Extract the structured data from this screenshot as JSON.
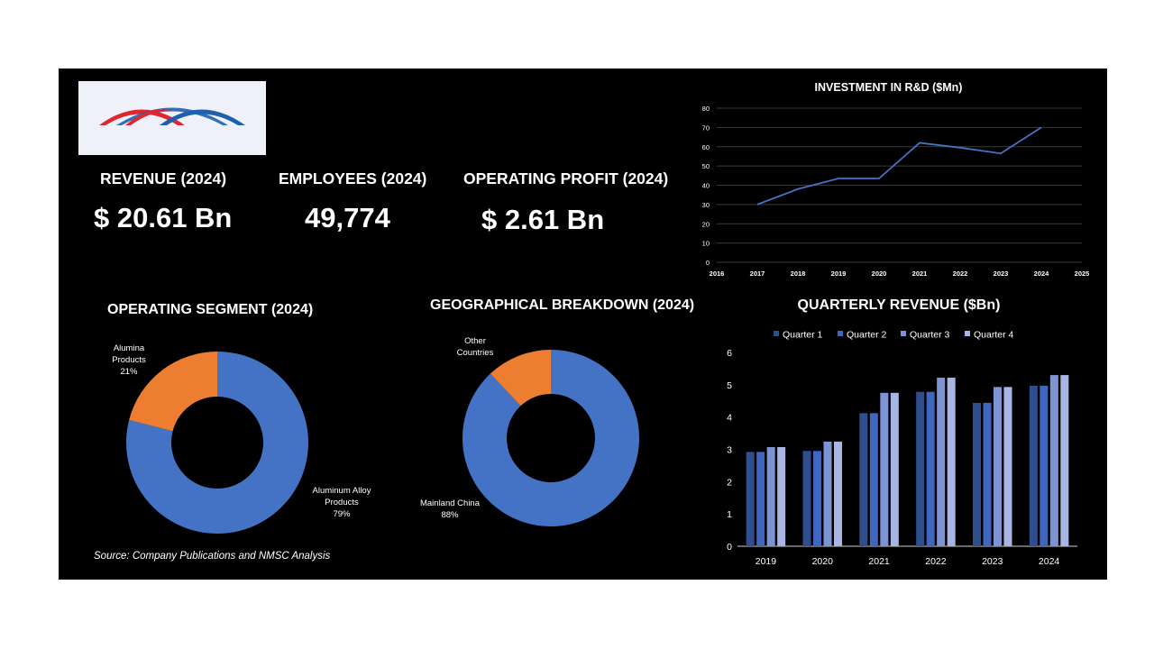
{
  "kpis": {
    "revenue_title": "REVENUE (2024)",
    "revenue_value": "$ 20.61 Bn",
    "employees_title": "EMPLOYEES (2024)",
    "employees_value": "49,774",
    "profit_title": "OPERATING PROFIT (2024)",
    "profit_value": "$ 2.61 Bn"
  },
  "source": "Source: Company Publications and NMSC Analysis",
  "colors": {
    "background": "#000000",
    "blue": "#4472c4",
    "orange": "#ed7d31",
    "logo_red": "#e0262e",
    "logo_blue": "#1f5fae",
    "q1": "#2f4e8e",
    "q2": "#3f67c0",
    "q3": "#7d94d4",
    "q4": "#a7b6e3"
  },
  "chart_data": [
    {
      "type": "line",
      "title": "INVESTMENT IN R&D ($Mn)",
      "x": [
        2017,
        2018,
        2019,
        2020,
        2021,
        2022,
        2023,
        2024
      ],
      "y": [
        30,
        38,
        43.5,
        43.5,
        62,
        59.5,
        56.5,
        70
      ],
      "xticks": [
        "2016",
        "2017",
        "2018",
        "2019",
        "2020",
        "2021",
        "2022",
        "2023",
        "2024",
        "2025"
      ],
      "yticks": [
        "0",
        "10",
        "20",
        "30",
        "40",
        "50",
        "60",
        "70",
        "80"
      ],
      "xlim": [
        2016,
        2025
      ],
      "ylim": [
        0,
        80
      ],
      "grid": true
    },
    {
      "type": "pie",
      "title": "OPERATING SEGMENT (2024)",
      "labels": [
        "Aluminum Alloy Products",
        "Alumina Products"
      ],
      "values": [
        79,
        21
      ],
      "display_labels": [
        [
          "Aluminum Alloy",
          "Products",
          "79%"
        ],
        [
          "Alumina",
          "Products",
          "21%"
        ]
      ]
    },
    {
      "type": "pie",
      "title": "GEOGRAPHICAL BREAKDOWN (2024)",
      "labels": [
        "Mainland China",
        "Other Countries"
      ],
      "values": [
        88,
        12
      ],
      "display_labels": [
        [
          "Mainland China",
          "88%"
        ],
        [
          "Other",
          "Countries"
        ]
      ]
    },
    {
      "type": "bar",
      "title": "QUARTERLY REVENUE ($Bn)",
      "categories": [
        "2019",
        "2020",
        "2021",
        "2022",
        "2023",
        "2024"
      ],
      "series": [
        {
          "name": "Quarter 1",
          "values": [
            2.92,
            2.95,
            4.12,
            4.78,
            4.44,
            4.97
          ]
        },
        {
          "name": "Quarter 2",
          "values": [
            2.92,
            2.95,
            4.12,
            4.78,
            4.44,
            4.97
          ]
        },
        {
          "name": "Quarter 3",
          "values": [
            3.07,
            3.24,
            4.75,
            5.22,
            4.93,
            5.3
          ]
        },
        {
          "name": "Quarter 4",
          "values": [
            3.07,
            3.24,
            4.75,
            5.22,
            4.93,
            5.3
          ]
        }
      ],
      "yticks": [
        "0",
        "1",
        "2",
        "3",
        "4",
        "5",
        "6"
      ],
      "ylim": [
        0,
        6
      ],
      "legend": "top",
      "grid": false
    }
  ]
}
